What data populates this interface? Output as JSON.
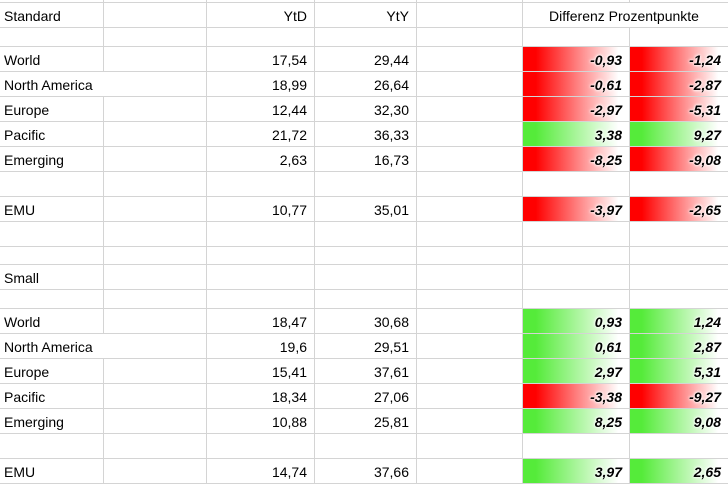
{
  "app": {
    "kind": "spreadsheet-view"
  },
  "colors": {
    "negative_fill_start": "#ff0000",
    "positive_fill_start": "#55eb3a",
    "gridline": "#d4d4d4",
    "text": "#000000",
    "background": "#ffffff"
  },
  "grid_rows": [
    {
      "kind": "top"
    },
    {
      "kind": "header",
      "label": "Standard",
      "ytd_label": "YtD",
      "yty_label": "YtY",
      "diff_label": "Differenz Prozentpunkte"
    },
    {
      "kind": "gap-sm"
    },
    {
      "kind": "data",
      "section": "Standard",
      "label": "World",
      "ytd": "17,54",
      "yty": "29,44",
      "diff1": "-0,93",
      "diff2": "-1,24",
      "tone": "negative"
    },
    {
      "kind": "data",
      "section": "Standard",
      "label": "North America",
      "ytd": "18,99",
      "yty": "26,64",
      "diff1": "-0,61",
      "diff2": "-2,87",
      "tone": "negative"
    },
    {
      "kind": "data",
      "section": "Standard",
      "label": "Europe",
      "ytd": "12,44",
      "yty": "32,30",
      "diff1": "-2,97",
      "diff2": "-5,31",
      "tone": "negative"
    },
    {
      "kind": "data",
      "section": "Standard",
      "label": "Pacific",
      "ytd": "21,72",
      "yty": "36,33",
      "diff1": "3,38",
      "diff2": "9,27",
      "tone": "positive"
    },
    {
      "kind": "data",
      "section": "Standard",
      "label": "Emerging",
      "ytd": "2,63",
      "yty": "16,73",
      "diff1": "-8,25",
      "diff2": "-9,08",
      "tone": "negative"
    },
    {
      "kind": "blank"
    },
    {
      "kind": "data",
      "section": "Standard",
      "label": "EMU",
      "ytd": "10,77",
      "yty": "35,01",
      "diff1": "-3,97",
      "diff2": "-2,65",
      "tone": "negative"
    },
    {
      "kind": "blank"
    },
    {
      "kind": "gap-xs"
    },
    {
      "kind": "section",
      "label": "Small"
    },
    {
      "kind": "gap-sm"
    },
    {
      "kind": "data",
      "section": "Small",
      "label": "World",
      "ytd": "18,47",
      "yty": "30,68",
      "diff1": "0,93",
      "diff2": "1,24",
      "tone": "positive"
    },
    {
      "kind": "data",
      "section": "Small",
      "label": "North America",
      "ytd": "19,6",
      "yty": "29,51",
      "diff1": "0,61",
      "diff2": "2,87",
      "tone": "positive"
    },
    {
      "kind": "data",
      "section": "Small",
      "label": "Europe",
      "ytd": "15,41",
      "yty": "37,61",
      "diff1": "2,97",
      "diff2": "5,31",
      "tone": "positive"
    },
    {
      "kind": "data",
      "section": "Small",
      "label": "Pacific",
      "ytd": "18,34",
      "yty": "27,06",
      "diff1": "-3,38",
      "diff2": "-9,27",
      "tone": "negative"
    },
    {
      "kind": "data",
      "section": "Small",
      "label": "Emerging",
      "ytd": "10,88",
      "yty": "25,81",
      "diff1": "8,25",
      "diff2": "9,08",
      "tone": "positive"
    },
    {
      "kind": "blank"
    },
    {
      "kind": "data",
      "section": "Small",
      "label": "EMU",
      "ytd": "14,74",
      "yty": "37,66",
      "diff1": "3,97",
      "diff2": "2,65",
      "tone": "positive"
    }
  ]
}
